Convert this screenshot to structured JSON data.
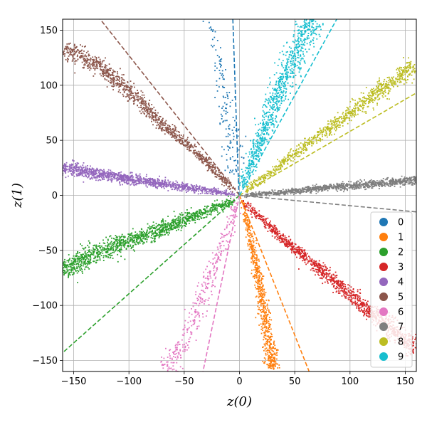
{
  "chart_data": {
    "type": "scatter",
    "xlabel": "z(0)",
    "ylabel": "z(1)",
    "xlim": [
      -160,
      160
    ],
    "ylim": [
      -160,
      160
    ],
    "xticks": [
      -150,
      -100,
      -50,
      0,
      50,
      100,
      150
    ],
    "yticks": [
      -150,
      -100,
      -50,
      0,
      50,
      100,
      150
    ],
    "grid": true,
    "legend_position": "bottom-right",
    "series": [
      {
        "name": "0",
        "color": "#1f77b4",
        "points": [
          [
            -30,
            160
          ],
          [
            -25,
            150
          ],
          [
            -22,
            135
          ],
          [
            -15,
            100
          ],
          [
            -8,
            60
          ],
          [
            -3,
            20
          ]
        ],
        "spread": 6,
        "count": 150,
        "fit_line": [
          [
            -6,
            160
          ],
          [
            -0.5,
            0
          ]
        ]
      },
      {
        "name": "1",
        "color": "#ff7f0e",
        "points": [
          [
            3,
            -5
          ],
          [
            10,
            -40
          ],
          [
            18,
            -80
          ],
          [
            23,
            -110
          ],
          [
            27,
            -135
          ],
          [
            30,
            -158
          ]
        ],
        "spread": 3,
        "count": 700,
        "fit_line": [
          [
            0,
            0
          ],
          [
            63,
            -160
          ]
        ]
      },
      {
        "name": "2",
        "color": "#2ca02c",
        "points": [
          [
            -5,
            -5
          ],
          [
            -45,
            -20
          ],
          [
            -80,
            -35
          ],
          [
            -110,
            -45
          ],
          [
            -140,
            -57
          ],
          [
            -160,
            -68
          ]
        ],
        "spread": 5,
        "count": 1300,
        "fit_line": [
          [
            0,
            0
          ],
          [
            -160,
            -143
          ]
        ]
      },
      {
        "name": "3",
        "color": "#d62728",
        "points": [
          [
            3,
            -5
          ],
          [
            40,
            -40
          ],
          [
            70,
            -65
          ],
          [
            100,
            -90
          ],
          [
            130,
            -115
          ],
          [
            160,
            -140
          ]
        ],
        "spread": 4,
        "count": 1300,
        "fit_line": null
      },
      {
        "name": "4",
        "color": "#9467bd",
        "points": [
          [
            -5,
            1
          ],
          [
            -40,
            6
          ],
          [
            -80,
            12
          ],
          [
            -120,
            18
          ],
          [
            -160,
            25
          ]
        ],
        "spread": 3,
        "count": 1200,
        "fit_line": null
      },
      {
        "name": "5",
        "color": "#8c564b",
        "points": [
          [
            -5,
            5
          ],
          [
            -40,
            40
          ],
          [
            -70,
            65
          ],
          [
            -100,
            95
          ],
          [
            -130,
            120
          ],
          [
            -158,
            133
          ]
        ],
        "spread": 4,
        "count": 1100,
        "fit_line": [
          [
            0,
            0
          ],
          [
            -126,
            160
          ]
        ]
      },
      {
        "name": "6",
        "color": "#e377c2",
        "points": [
          [
            -2,
            -5
          ],
          [
            -10,
            -30
          ],
          [
            -25,
            -70
          ],
          [
            -40,
            -110
          ],
          [
            -55,
            -140
          ],
          [
            -67,
            -158
          ]
        ],
        "spread": 5,
        "count": 350,
        "fit_line": [
          [
            0,
            0
          ],
          [
            -33,
            -160
          ]
        ]
      },
      {
        "name": "7",
        "color": "#7f7f7f",
        "points": [
          [
            5,
            0
          ],
          [
            40,
            3
          ],
          [
            80,
            7
          ],
          [
            120,
            10
          ],
          [
            160,
            14
          ]
        ],
        "spread": 2,
        "count": 1100,
        "fit_line": [
          [
            0,
            0
          ],
          [
            160,
            -15
          ]
        ]
      },
      {
        "name": "8",
        "color": "#bcbd22",
        "points": [
          [
            5,
            4
          ],
          [
            40,
            30
          ],
          [
            80,
            60
          ],
          [
            120,
            90
          ],
          [
            158,
            118
          ]
        ],
        "spread": 4,
        "count": 900,
        "fit_line": [
          [
            0,
            0
          ],
          [
            160,
            93
          ]
        ]
      },
      {
        "name": "9",
        "color": "#17becf",
        "points": [
          [
            2,
            6
          ],
          [
            15,
            40
          ],
          [
            30,
            80
          ],
          [
            45,
            115
          ],
          [
            58,
            145
          ],
          [
            65,
            160
          ]
        ],
        "spread": 6,
        "count": 900,
        "fit_line": [
          [
            0,
            0
          ],
          [
            88,
            160
          ]
        ]
      }
    ]
  }
}
